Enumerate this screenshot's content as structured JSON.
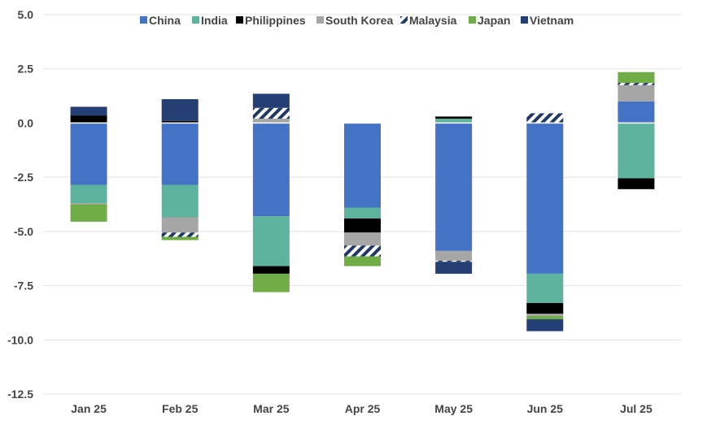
{
  "chart_data": {
    "type": "bar",
    "stacked": true,
    "categories": [
      "Jan 25",
      "Feb 25",
      "Mar 25",
      "Apr 25",
      "May 25",
      "Jun 25",
      "Jul 25"
    ],
    "ylim": [
      -12.5,
      5.0
    ],
    "yticks": [
      "5.0",
      "2.5",
      "0.0",
      "-2.5",
      "-5.0",
      "-7.5",
      "-10.0",
      "-12.5"
    ],
    "ytick_values": [
      5.0,
      2.5,
      0.0,
      -2.5,
      -5.0,
      -7.5,
      -10.0,
      -12.5
    ],
    "grid": true,
    "legend_position": "top",
    "series": [
      {
        "name": "China",
        "color": "#4472C4",
        "pattern": "solid",
        "values": [
          -2.85,
          -2.85,
          -4.3,
          -3.9,
          -5.9,
          -6.95,
          1.0
        ]
      },
      {
        "name": "India",
        "color": "#5DB39E",
        "pattern": "solid",
        "values": [
          -0.85,
          -1.5,
          -2.3,
          -0.5,
          0.2,
          -1.35,
          -2.55
        ]
      },
      {
        "name": "Philippines",
        "color": "#000000",
        "pattern": "solid",
        "values": [
          0.35,
          0.1,
          -0.35,
          -0.65,
          0.1,
          -0.5,
          -0.5
        ]
      },
      {
        "name": "South Korea",
        "color": "#A6A6A6",
        "pattern": "solid",
        "values": [
          -0.05,
          -0.7,
          0.2,
          -0.6,
          -0.45,
          -0.1,
          0.75
        ]
      },
      {
        "name": "Malaysia",
        "color": "#1F3864",
        "pattern": "diagonal",
        "values": [
          0.0,
          -0.2,
          0.5,
          -0.5,
          -0.05,
          0.45,
          0.1
        ]
      },
      {
        "name": "Japan",
        "color": "#70AD47",
        "pattern": "solid",
        "values": [
          -0.8,
          -0.15,
          -0.85,
          -0.45,
          0.0,
          -0.15,
          0.5
        ]
      },
      {
        "name": "Vietnam",
        "color": "#243F73",
        "pattern": "solid",
        "values": [
          0.4,
          1.0,
          0.65,
          0.0,
          -0.55,
          -0.55,
          0.0
        ]
      }
    ]
  }
}
